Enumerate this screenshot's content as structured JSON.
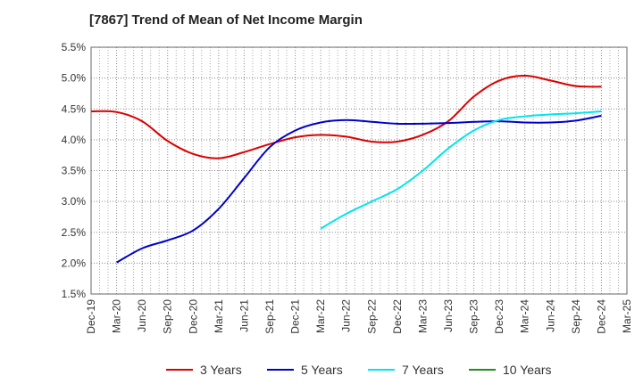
{
  "chart_data": {
    "type": "line",
    "title": "[7867]  Trend of Mean of Net Income Margin",
    "xlabel": "",
    "ylabel": "",
    "x_tick_labels": [
      "Dec-19",
      "Mar-20",
      "Jun-20",
      "Sep-20",
      "Dec-20",
      "Mar-21",
      "Jun-21",
      "Sep-21",
      "Dec-21",
      "Mar-22",
      "Jun-22",
      "Sep-22",
      "Dec-22",
      "Mar-23",
      "Jun-23",
      "Sep-23",
      "Dec-23",
      "Mar-24",
      "Jun-24",
      "Sep-24",
      "Dec-24",
      "Mar-25"
    ],
    "y_tick_labels": [
      "5.5%",
      "5.0%",
      "4.5%",
      "4.0%",
      "3.5%",
      "3.0%",
      "2.5%",
      "2.0%",
      "1.5%"
    ],
    "ylim": [
      1.5,
      5.5
    ],
    "y_unit": "%",
    "grid": true,
    "legend_position": "bottom",
    "series": [
      {
        "name": "3 Years",
        "color": "#dd0000",
        "x": [
          "Dec-19",
          "Mar-20",
          "Jun-20",
          "Sep-20",
          "Dec-20",
          "Mar-21",
          "Jun-21",
          "Sep-21",
          "Dec-21",
          "Mar-22",
          "Jun-22",
          "Sep-22",
          "Dec-22",
          "Mar-23",
          "Jun-23",
          "Sep-23",
          "Dec-23",
          "Mar-24",
          "Jun-24",
          "Sep-24",
          "Dec-24"
        ],
        "values": [
          4.46,
          4.45,
          4.3,
          3.98,
          3.77,
          3.7,
          3.8,
          3.93,
          4.04,
          4.08,
          4.05,
          3.97,
          3.97,
          4.08,
          4.3,
          4.7,
          4.96,
          5.04,
          4.96,
          4.87,
          4.86
        ]
      },
      {
        "name": "5 Years",
        "color": "#0000cc",
        "x": [
          "Mar-20",
          "Jun-20",
          "Sep-20",
          "Dec-20",
          "Mar-21",
          "Jun-21",
          "Sep-21",
          "Dec-21",
          "Mar-22",
          "Jun-22",
          "Sep-22",
          "Dec-22",
          "Mar-23",
          "Jun-23",
          "Sep-23",
          "Dec-23",
          "Mar-24",
          "Jun-24",
          "Sep-24",
          "Dec-24"
        ],
        "values": [
          2.01,
          2.24,
          2.37,
          2.53,
          2.88,
          3.38,
          3.88,
          4.15,
          4.28,
          4.32,
          4.29,
          4.26,
          4.26,
          4.27,
          4.29,
          4.3,
          4.28,
          4.28,
          4.31,
          4.39
        ]
      },
      {
        "name": "7 Years",
        "color": "#00e5ee",
        "x": [
          "Mar-22",
          "Jun-22",
          "Sep-22",
          "Dec-22",
          "Mar-23",
          "Jun-23",
          "Sep-23",
          "Dec-23",
          "Mar-24",
          "Jun-24",
          "Sep-24",
          "Dec-24"
        ],
        "values": [
          2.56,
          2.8,
          3.0,
          3.2,
          3.5,
          3.86,
          4.15,
          4.32,
          4.38,
          4.41,
          4.43,
          4.46
        ]
      },
      {
        "name": "10 Years",
        "color": "#228b22",
        "x": [],
        "values": []
      }
    ]
  }
}
